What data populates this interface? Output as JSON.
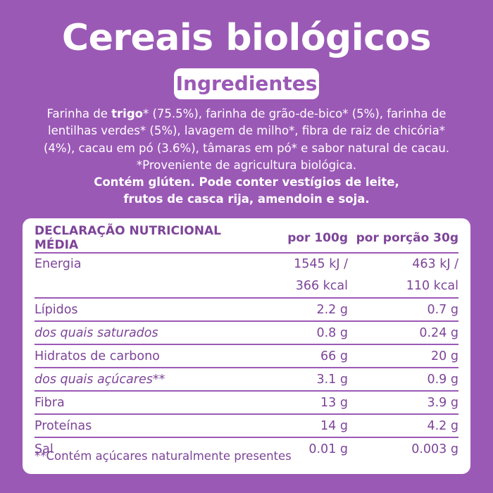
{
  "title": "Cereais biológicos",
  "badge": "Ingredientes",
  "ingredients": {
    "part1": "Farinha de ",
    "highlight": "trigo",
    "part2": "* (75.5%), farinha de grão-de-bico* (5%), farinha de lentilhas verdes* (5%), lavagem de milho*, fibra de raiz de chicória* (4%), cacau em pó (3.6%), tâmaras em pó* e sabor natural de cacau. *Proveniente de agricultura biológica.",
    "warning_line1": "Contém glúten. Pode conter vestígios de leite,",
    "warning_line2": "frutos de casca rija, amendoin e soja."
  },
  "table": {
    "headers": [
      "DECLARAÇÃO NUTRICIONAL MÉDIA",
      "por 100g",
      "por porção 30g"
    ],
    "energy": {
      "label": "Energia",
      "per100_kj": "1545 kJ /",
      "per100_kcal": "366 kcal",
      "portion_kj": "463 kJ /",
      "portion_kcal": "110 kcal"
    },
    "rows": [
      {
        "label": "Lípidos",
        "per100": "2.2 g",
        "portion": "0.7 g"
      },
      {
        "label": "dos quais saturados",
        "per100": "0.8 g",
        "portion": "0.24 g"
      },
      {
        "label": "Hidratos de carbono",
        "per100": "66 g",
        "portion": "20 g"
      },
      {
        "label": "dos quais açúcares**",
        "per100": "3.1 g",
        "portion": "0.9 g"
      },
      {
        "label": "Fibra",
        "per100": "13 g",
        "portion": "3.9 g"
      },
      {
        "label": "Proteínas",
        "per100": "14 g",
        "portion": "4.2 g"
      },
      {
        "label": "Sal",
        "per100": "0.01 g",
        "portion": "0.003 g"
      }
    ],
    "footnote": "**Contém açúcares naturalmente presentes"
  }
}
